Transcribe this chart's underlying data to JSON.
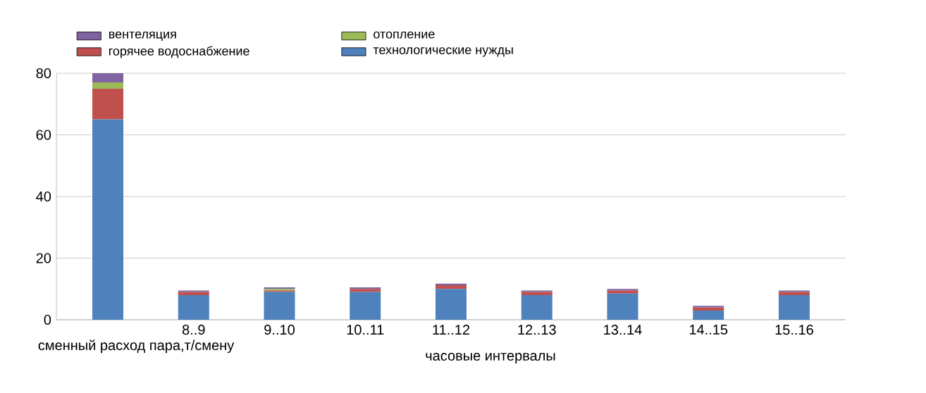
{
  "chart_data": {
    "type": "bar",
    "stacked": true,
    "xlabel": "часовые интервалы",
    "categories": [
      "сменный расход пара,т/смену",
      "8..9",
      "9..10",
      "10..11",
      "11..12",
      "12..13",
      "13..14",
      "14..15",
      "15..16"
    ],
    "series": [
      {
        "name": "технологические нужды",
        "color": "#4f81bd",
        "values": [
          65,
          8,
          9,
          9,
          10,
          8,
          8.5,
          3,
          8
        ]
      },
      {
        "name": "горячее водоснабжение",
        "color": "#c0504d",
        "values": [
          10,
          1,
          0.5,
          1,
          1.2,
          1,
          1,
          1,
          1
        ]
      },
      {
        "name": "отопление",
        "color": "#9bbb59",
        "values": [
          2,
          null,
          0.5,
          null,
          null,
          null,
          null,
          null,
          null
        ]
      },
      {
        "name": "вентеляция",
        "color": "#8064a2",
        "values": [
          3,
          0.5,
          0.5,
          0.5,
          0.5,
          0.5,
          0.5,
          0.5,
          0.5
        ]
      }
    ],
    "ylim": [
      0,
      80
    ],
    "yticks": [
      0,
      20,
      40,
      60,
      80
    ],
    "grid": "y",
    "legend": "top"
  }
}
